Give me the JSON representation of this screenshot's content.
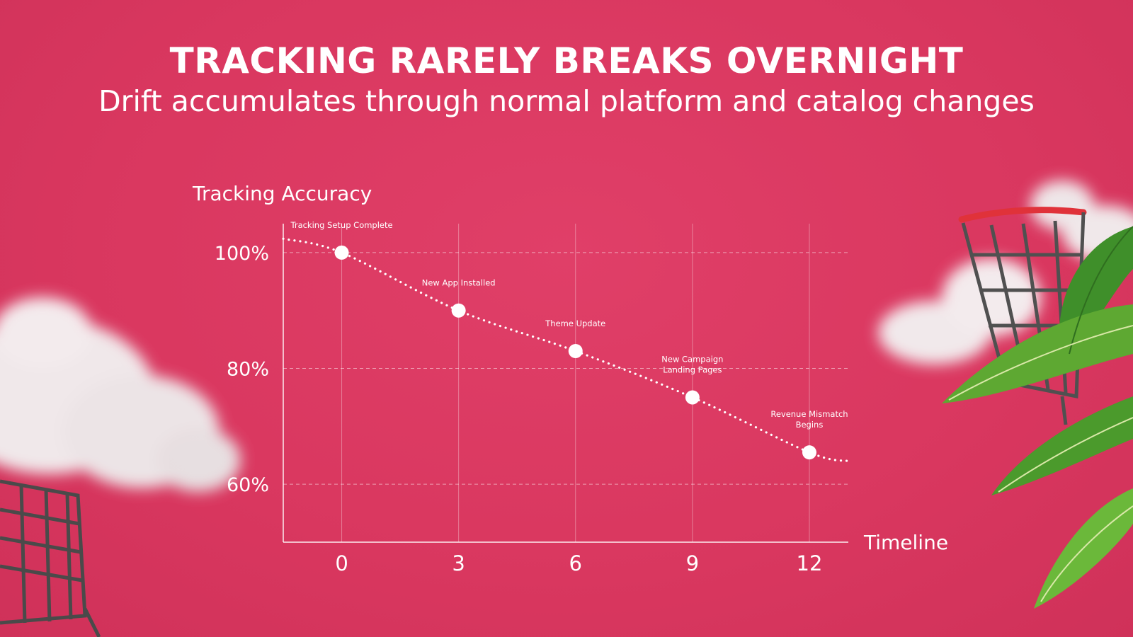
{
  "title": "TRACKING RARELY BREAKS OVERNIGHT",
  "subtitle": "Drift accumulates through normal platform and catalog changes",
  "colors": {
    "background": "#dc3862",
    "foreground": "#ffffff"
  },
  "chart_data": {
    "type": "line",
    "ylabel": "Tracking Accuracy",
    "xlabel": "Timeline",
    "x_ticks": [
      "0",
      "3",
      "6",
      "9",
      "12"
    ],
    "y_ticks": [
      "100%",
      "80%",
      "60%"
    ],
    "xlim": [
      -1.5,
      13
    ],
    "ylim": [
      50,
      105
    ],
    "grid": true,
    "series": [
      {
        "name": "Tracking Accuracy",
        "line_x": [
          -1.5,
          0,
          3,
          6,
          9,
          12,
          13
        ],
        "line_y": [
          102.4,
          100,
          90,
          83,
          75,
          65.5,
          64
        ],
        "points": [
          {
            "x": 0,
            "y": 100,
            "label": [
              "Tracking Setup Complete"
            ]
          },
          {
            "x": 3,
            "y": 90,
            "label": [
              "New App Installed"
            ]
          },
          {
            "x": 6,
            "y": 83,
            "label": [
              "Theme Update"
            ]
          },
          {
            "x": 9,
            "y": 75,
            "label": [
              "New Campaign",
              "Landing Pages"
            ]
          },
          {
            "x": 12,
            "y": 65.5,
            "label": [
              "Revenue Mismatch",
              "Begins"
            ]
          }
        ]
      }
    ]
  }
}
